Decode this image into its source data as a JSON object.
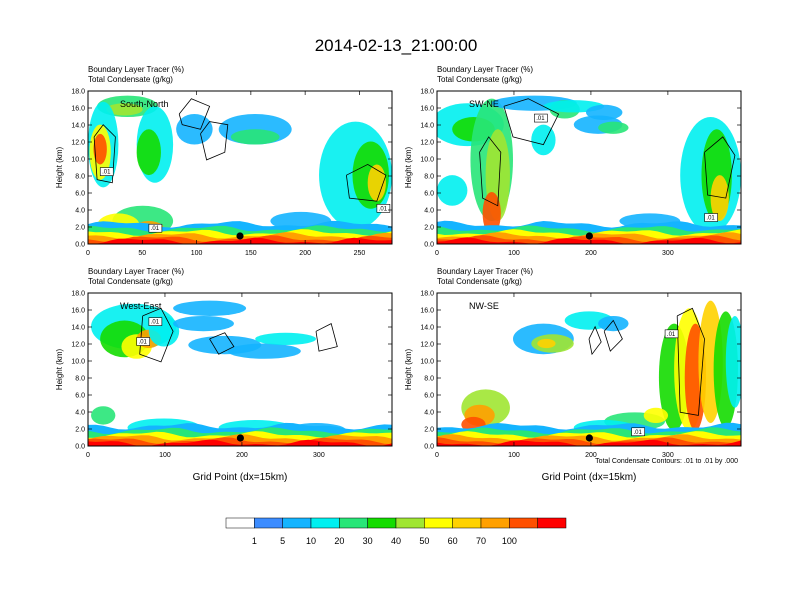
{
  "chart_data": {
    "type": "heatmap",
    "title": "2014-02-13_21:00:00",
    "colorbar": {
      "levels": [
        "1",
        "5",
        "10",
        "20",
        "30",
        "40",
        "50",
        "60",
        "70",
        "100"
      ],
      "colors": [
        "#ffffff",
        "#3c8cff",
        "#14b4ff",
        "#00f0f0",
        "#28e678",
        "#14dc00",
        "#a0e632",
        "#ffff00",
        "#ffd200",
        "#ffa000",
        "#ff5000",
        "#ff0000"
      ]
    },
    "contour_note": "Total Condensate Contours: .01 to .01 by .000",
    "panels": [
      {
        "label": "South-North",
        "line1": "Boundary Layer Tracer   (%)",
        "line2": "Total Condensate   (g/kg)",
        "ylabel": "Height (km)",
        "xlabel": "",
        "xlim": [
          0,
          280
        ],
        "ylim": [
          0,
          18
        ],
        "xticks": [
          0,
          50,
          100,
          150,
          200,
          250
        ],
        "yticks": [
          "0.0",
          "2.0",
          "4.0",
          "6.0",
          "8.0",
          "10.0",
          "12.0",
          "14.0",
          "16.0",
          "18.0"
        ],
        "contour_labels": [
          ".01",
          ".01",
          ".01"
        ],
        "marker_x": 140
      },
      {
        "label": "SW-NE",
        "line1": "Boundary Layer Tracer   (%)",
        "line2": "Total Condensate   (g/kg)",
        "ylabel": "Height (km)",
        "xlabel": "",
        "xlim": [
          0,
          395
        ],
        "ylim": [
          0,
          18
        ],
        "xticks": [
          0,
          100,
          200,
          300
        ],
        "yticks": [
          "0.0",
          "2.0",
          "4.0",
          "6.0",
          "8.0",
          "10.0",
          "12.0",
          "14.0",
          "16.0",
          "18.0"
        ],
        "contour_labels": [
          ".01",
          ".01"
        ],
        "marker_x": 198
      },
      {
        "label": "West-East",
        "line1": "Boundary Layer Tracer   (%)",
        "line2": "Total Condensate   (g/kg)",
        "ylabel": "Height (km)",
        "xlabel": "Grid Point (dx=15km)",
        "xlim": [
          0,
          395
        ],
        "ylim": [
          0,
          18
        ],
        "xticks": [
          0,
          100,
          200,
          300
        ],
        "yticks": [
          "0.0",
          "2.0",
          "4.0",
          "6.0",
          "8.0",
          "10.0",
          "12.0",
          "14.0",
          "16.0",
          "18.0"
        ],
        "contour_labels": [
          ".01",
          ".01"
        ],
        "marker_x": 198
      },
      {
        "label": "NW-SE",
        "line1": "Boundary Layer Tracer   (%)",
        "line2": "Total Condensate   (g/kg)",
        "ylabel": "Height (km)",
        "xlabel": "Grid Point (dx=15km)",
        "xlim": [
          0,
          395
        ],
        "ylim": [
          0,
          18
        ],
        "xticks": [
          0,
          100,
          200,
          300
        ],
        "yticks": [
          "0.0",
          "2.0",
          "4.0",
          "6.0",
          "8.0",
          "10.0",
          "12.0",
          "14.0",
          "16.0",
          "18.0"
        ],
        "contour_labels": [
          ".01",
          ".01"
        ],
        "marker_x": 198
      }
    ]
  }
}
